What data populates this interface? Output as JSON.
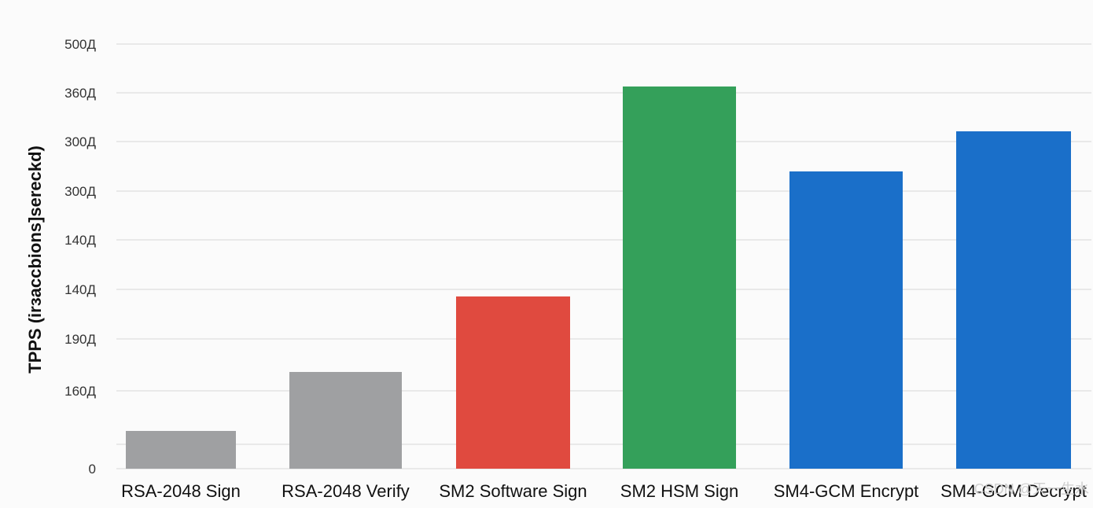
{
  "chart_data": {
    "type": "bar",
    "title": "",
    "xlabel": "",
    "ylabel": "TPPS (irзaccbions]sereckd)",
    "categories": [
      "RSA-2048 Sign",
      "RSA-2048 Verify",
      "SM2 Software Sign",
      "SM2 HSM Sign",
      "SM4-GCM Encrypt",
      "SM4-GCM Decrypt"
    ],
    "values": [
      80,
      205,
      365,
      810,
      630,
      715
    ],
    "bar_colors": [
      "#9fa0a2",
      "#9fa0a2",
      "#e04a3f",
      "#34a05a",
      "#1a6fc9",
      "#1a6fc9"
    ],
    "yticks": [
      "0",
      "160Д",
      "190Д",
      "140Д",
      "140Д",
      "300Д",
      "300Д",
      "360Д",
      "500Д"
    ],
    "ylim": [
      0,
      900
    ],
    "grid": true,
    "watermark": "CSDN @天一生水"
  }
}
